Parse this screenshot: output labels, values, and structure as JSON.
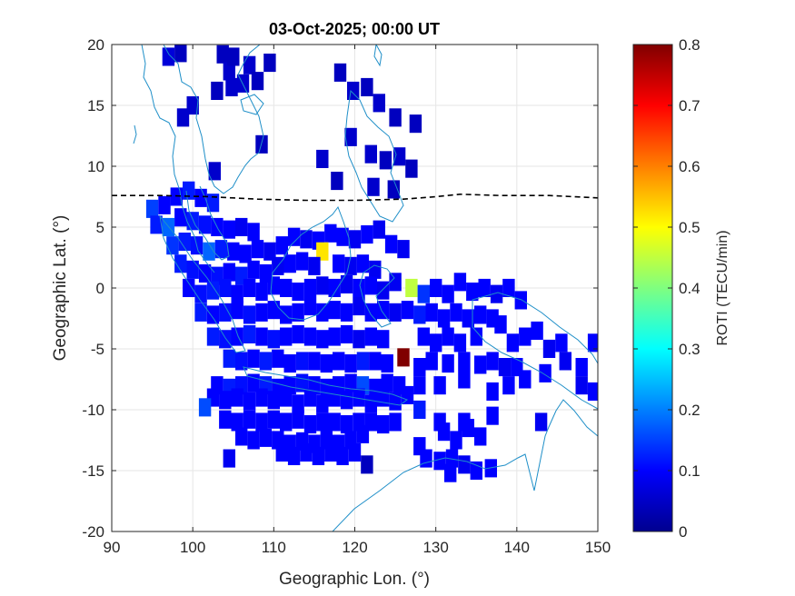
{
  "chart_data": {
    "type": "heatmap",
    "title": "03-Oct-2025; 00:00 UT",
    "xlabel": "Geographic Lon. (°)",
    "ylabel": "Geographic Lat. (°)",
    "xlim": [
      90,
      150
    ],
    "ylim": [
      -20,
      20
    ],
    "xticks": [
      "90",
      "100",
      "110",
      "120",
      "130",
      "140",
      "150"
    ],
    "yticks": [
      "20",
      "15",
      "10",
      "5",
      "0",
      "-5",
      "-10",
      "-15",
      "-20"
    ],
    "grid": true,
    "colorbar": {
      "label": "ROTI (TECU/min)",
      "range": [
        0,
        0.8
      ],
      "ticks": [
        "0.8",
        "0.7",
        "0.6",
        "0.5",
        "0.4",
        "0.3",
        "0.2",
        "0.1",
        "0"
      ],
      "colormap": "jet"
    },
    "terminator_line": {
      "style": "dashed",
      "color": "#000000",
      "points": [
        [
          90,
          7.6
        ],
        [
          96,
          7.6
        ],
        [
          102,
          7.5
        ],
        [
          108,
          7.3
        ],
        [
          114,
          7.2
        ],
        [
          120,
          7.2
        ],
        [
          126,
          7.3
        ],
        [
          130,
          7.5
        ],
        [
          133,
          7.7
        ],
        [
          138,
          7.6
        ],
        [
          144,
          7.6
        ],
        [
          150,
          7.4
        ]
      ]
    },
    "cell_size_deg": [
      1.5,
      1.5
    ],
    "roti_cells": [
      [
        97.0,
        19.0,
        0.07
      ],
      [
        98.5,
        19.3,
        0.05
      ],
      [
        103.7,
        19.2,
        0.05
      ],
      [
        104.5,
        17.8,
        0.06
      ],
      [
        105.0,
        19.0,
        0.05
      ],
      [
        107.0,
        18.3,
        0.06
      ],
      [
        108.0,
        17.0,
        0.05
      ],
      [
        109.5,
        18.5,
        0.05
      ],
      [
        103.0,
        16.2,
        0.05
      ],
      [
        104.8,
        16.5,
        0.06
      ],
      [
        106.2,
        16.8,
        0.06
      ],
      [
        98.8,
        14.0,
        0.06
      ],
      [
        100.0,
        15.0,
        0.06
      ],
      [
        108.5,
        11.8,
        0.05
      ],
      [
        102.7,
        9.6,
        0.06
      ],
      [
        118.2,
        17.7,
        0.05
      ],
      [
        119.8,
        16.2,
        0.06
      ],
      [
        121.5,
        16.5,
        0.05
      ],
      [
        123.0,
        15.2,
        0.06
      ],
      [
        125.0,
        14.0,
        0.05
      ],
      [
        127.5,
        13.5,
        0.05
      ],
      [
        119.5,
        12.4,
        0.06
      ],
      [
        122.0,
        11.0,
        0.06
      ],
      [
        123.8,
        10.5,
        0.05
      ],
      [
        125.5,
        10.8,
        0.06
      ],
      [
        127.0,
        9.8,
        0.05
      ],
      [
        116.0,
        10.6,
        0.06
      ],
      [
        117.8,
        8.8,
        0.05
      ],
      [
        122.3,
        8.3,
        0.06
      ],
      [
        124.8,
        8.1,
        0.05
      ],
      [
        95.0,
        6.5,
        0.15
      ],
      [
        96.5,
        6.8,
        0.1
      ],
      [
        98.0,
        7.5,
        0.1
      ],
      [
        99.5,
        8.0,
        0.12
      ],
      [
        101.0,
        7.4,
        0.1
      ],
      [
        102.5,
        7.0,
        0.12
      ],
      [
        95.5,
        5.2,
        0.12
      ],
      [
        97.0,
        5.0,
        0.18
      ],
      [
        98.5,
        5.8,
        0.1
      ],
      [
        100.0,
        5.5,
        0.12
      ],
      [
        101.5,
        5.2,
        0.11
      ],
      [
        103.0,
        5.0,
        0.1
      ],
      [
        104.5,
        4.8,
        0.1
      ],
      [
        106.0,
        5.0,
        0.09
      ],
      [
        107.5,
        4.6,
        0.1
      ],
      [
        97.5,
        3.5,
        0.14
      ],
      [
        99.0,
        3.8,
        0.12
      ],
      [
        100.5,
        3.5,
        0.11
      ],
      [
        102.0,
        3.0,
        0.18
      ],
      [
        103.5,
        3.2,
        0.12
      ],
      [
        105.0,
        3.0,
        0.1
      ],
      [
        106.5,
        2.8,
        0.1
      ],
      [
        108.0,
        3.2,
        0.1
      ],
      [
        109.5,
        3.0,
        0.09
      ],
      [
        111.0,
        3.5,
        0.1
      ],
      [
        112.5,
        4.2,
        0.1
      ],
      [
        114.0,
        4.0,
        0.09
      ],
      [
        115.5,
        3.9,
        0.1
      ],
      [
        117.0,
        4.5,
        0.1
      ],
      [
        118.5,
        4.2,
        0.1
      ],
      [
        120.0,
        4.0,
        0.09
      ],
      [
        121.5,
        4.4,
        0.1
      ],
      [
        123.0,
        4.8,
        0.09
      ],
      [
        124.5,
        3.6,
        0.1
      ],
      [
        126.0,
        3.2,
        0.09
      ],
      [
        116.0,
        3.0,
        0.52
      ],
      [
        98.5,
        2.0,
        0.12
      ],
      [
        100.0,
        1.5,
        0.11
      ],
      [
        101.5,
        1.2,
        0.1
      ],
      [
        103.0,
        1.0,
        0.11
      ],
      [
        104.5,
        1.3,
        0.1
      ],
      [
        106.0,
        1.0,
        0.12
      ],
      [
        107.5,
        1.5,
        0.1
      ],
      [
        109.0,
        1.2,
        0.1
      ],
      [
        110.5,
        1.8,
        0.09
      ],
      [
        112.0,
        2.0,
        0.1
      ],
      [
        113.5,
        2.2,
        0.1
      ],
      [
        115.0,
        1.8,
        0.09
      ],
      [
        118.0,
        2.0,
        0.1
      ],
      [
        119.5,
        1.8,
        0.09
      ],
      [
        121.0,
        2.0,
        0.1
      ],
      [
        122.5,
        1.5,
        0.09
      ],
      [
        99.5,
        0.0,
        0.1
      ],
      [
        101.0,
        -0.5,
        0.11
      ],
      [
        102.5,
        -0.2,
        0.12
      ],
      [
        104.0,
        0.0,
        0.11
      ],
      [
        105.5,
        -0.5,
        0.1
      ],
      [
        107.0,
        0.0,
        0.1
      ],
      [
        108.5,
        -0.3,
        0.1
      ],
      [
        110.0,
        0.2,
        0.1
      ],
      [
        111.5,
        0.0,
        0.1
      ],
      [
        113.0,
        -0.3,
        0.1
      ],
      [
        114.5,
        0.0,
        0.1
      ],
      [
        116.0,
        0.2,
        0.09
      ],
      [
        117.5,
        0.0,
        0.1
      ],
      [
        119.0,
        0.3,
        0.09
      ],
      [
        120.5,
        0.0,
        0.1
      ],
      [
        122.0,
        0.2,
        0.1
      ],
      [
        123.5,
        -0.2,
        0.09
      ],
      [
        125.0,
        0.5,
        0.09
      ],
      [
        127.0,
        0.0,
        0.45
      ],
      [
        128.5,
        -0.5,
        0.14
      ],
      [
        130.0,
        0.0,
        0.1
      ],
      [
        131.5,
        -0.5,
        0.1
      ],
      [
        133.0,
        0.5,
        0.1
      ],
      [
        134.5,
        -0.3,
        0.1
      ],
      [
        136.0,
        0.0,
        0.1
      ],
      [
        137.5,
        -0.5,
        0.09
      ],
      [
        139.0,
        0.0,
        0.1
      ],
      [
        140.5,
        -1.0,
        0.1
      ],
      [
        101.0,
        -2.0,
        0.12
      ],
      [
        102.5,
        -2.2,
        0.1
      ],
      [
        104.0,
        -2.0,
        0.11
      ],
      [
        105.5,
        -1.8,
        0.1
      ],
      [
        107.0,
        -2.2,
        0.11
      ],
      [
        108.5,
        -2.0,
        0.1
      ],
      [
        110.0,
        -1.8,
        0.1
      ],
      [
        111.5,
        -2.2,
        0.1
      ],
      [
        113.0,
        -2.0,
        0.1
      ],
      [
        114.5,
        -1.5,
        0.1
      ],
      [
        116.0,
        -2.0,
        0.1
      ],
      [
        117.5,
        -1.8,
        0.1
      ],
      [
        119.0,
        -2.0,
        0.1
      ],
      [
        120.5,
        -1.5,
        0.09
      ],
      [
        122.0,
        -2.0,
        0.1
      ],
      [
        123.5,
        -1.8,
        0.1
      ],
      [
        125.0,
        -2.0,
        0.09
      ],
      [
        126.5,
        -1.8,
        0.1
      ],
      [
        128.0,
        -2.2,
        0.12
      ],
      [
        129.5,
        -2.0,
        0.1
      ],
      [
        131.0,
        -2.5,
        0.1
      ],
      [
        132.5,
        -2.0,
        0.1
      ],
      [
        134.0,
        -2.5,
        0.1
      ],
      [
        135.5,
        -2.2,
        0.1
      ],
      [
        137.0,
        -2.5,
        0.1
      ],
      [
        102.5,
        -4.0,
        0.12
      ],
      [
        104.0,
        -4.2,
        0.11
      ],
      [
        105.5,
        -4.0,
        0.1
      ],
      [
        107.0,
        -3.8,
        0.12
      ],
      [
        108.5,
        -4.0,
        0.1
      ],
      [
        110.0,
        -4.2,
        0.11
      ],
      [
        111.5,
        -4.0,
        0.1
      ],
      [
        113.0,
        -3.8,
        0.1
      ],
      [
        114.5,
        -4.0,
        0.1
      ],
      [
        116.0,
        -4.2,
        0.1
      ],
      [
        117.5,
        -4.0,
        0.1
      ],
      [
        119.0,
        -3.8,
        0.1
      ],
      [
        120.5,
        -4.2,
        0.09
      ],
      [
        122.0,
        -4.0,
        0.1
      ],
      [
        123.5,
        -4.2,
        0.1
      ],
      [
        128.5,
        -4.0,
        0.1
      ],
      [
        130.0,
        -4.5,
        0.1
      ],
      [
        131.5,
        -4.0,
        0.1
      ],
      [
        133.0,
        -4.5,
        0.1
      ],
      [
        135.0,
        -4.0,
        0.1
      ],
      [
        138.0,
        -3.0,
        0.1
      ],
      [
        139.5,
        -4.5,
        0.1
      ],
      [
        141.0,
        -4.0,
        0.1
      ],
      [
        142.5,
        -3.5,
        0.1
      ],
      [
        144.0,
        -5.0,
        0.09
      ],
      [
        145.5,
        -4.5,
        0.1
      ],
      [
        149.5,
        -4.5,
        0.1
      ],
      [
        104.5,
        -5.8,
        0.12
      ],
      [
        106.0,
        -6.0,
        0.11
      ],
      [
        107.5,
        -5.8,
        0.1
      ],
      [
        109.0,
        -6.0,
        0.12
      ],
      [
        110.5,
        -5.8,
        0.1
      ],
      [
        112.0,
        -6.2,
        0.1
      ],
      [
        113.5,
        -6.0,
        0.11
      ],
      [
        115.0,
        -6.0,
        0.1
      ],
      [
        116.5,
        -6.2,
        0.1
      ],
      [
        118.0,
        -6.0,
        0.1
      ],
      [
        119.5,
        -6.2,
        0.1
      ],
      [
        121.0,
        -6.0,
        0.12
      ],
      [
        122.5,
        -6.0,
        0.1
      ],
      [
        124.0,
        -6.2,
        0.1
      ],
      [
        126.0,
        -5.7,
        0.8
      ],
      [
        128.0,
        -6.5,
        0.1
      ],
      [
        129.5,
        -6.0,
        0.1
      ],
      [
        131.5,
        -6.2,
        0.1
      ],
      [
        133.5,
        -6.0,
        0.1
      ],
      [
        135.5,
        -6.3,
        0.1
      ],
      [
        137.0,
        -6.0,
        0.1
      ],
      [
        138.5,
        -6.5,
        0.09
      ],
      [
        140.0,
        -6.5,
        0.1
      ],
      [
        143.5,
        -7.0,
        0.1
      ],
      [
        146.0,
        -6.0,
        0.09
      ],
      [
        148.0,
        -6.5,
        0.1
      ],
      [
        103.0,
        -8.0,
        0.1
      ],
      [
        104.5,
        -8.2,
        0.12
      ],
      [
        106.0,
        -8.0,
        0.11
      ],
      [
        107.5,
        -7.8,
        0.1
      ],
      [
        109.0,
        -8.0,
        0.12
      ],
      [
        110.5,
        -8.2,
        0.1
      ],
      [
        112.0,
        -8.0,
        0.1
      ],
      [
        113.5,
        -7.8,
        0.11
      ],
      [
        115.0,
        -8.0,
        0.1
      ],
      [
        116.5,
        -8.2,
        0.1
      ],
      [
        118.0,
        -8.0,
        0.1
      ],
      [
        119.5,
        -7.8,
        0.1
      ],
      [
        121.0,
        -8.0,
        0.16
      ],
      [
        122.5,
        -8.2,
        0.1
      ],
      [
        124.0,
        -7.8,
        0.1
      ],
      [
        125.5,
        -8.0,
        0.1
      ],
      [
        128.0,
        -8.0,
        0.1
      ],
      [
        130.5,
        -8.0,
        0.1
      ],
      [
        133.5,
        -7.5,
        0.1
      ],
      [
        137.0,
        -8.5,
        0.1
      ],
      [
        139.0,
        -8.0,
        0.1
      ],
      [
        141.0,
        -7.5,
        0.1
      ],
      [
        148.0,
        -8.0,
        0.09
      ],
      [
        102.5,
        -9.0,
        0.1
      ],
      [
        104.0,
        -9.2,
        0.1
      ],
      [
        105.5,
        -9.0,
        0.1
      ],
      [
        107.0,
        -9.3,
        0.1
      ],
      [
        108.5,
        -9.0,
        0.1
      ],
      [
        110.0,
        -9.2,
        0.1
      ],
      [
        111.5,
        -9.0,
        0.1
      ],
      [
        113.0,
        -9.5,
        0.1
      ],
      [
        114.5,
        -9.0,
        0.1
      ],
      [
        116.0,
        -9.5,
        0.1
      ],
      [
        117.5,
        -9.0,
        0.1
      ],
      [
        119.0,
        -9.2,
        0.1
      ],
      [
        120.5,
        -9.0,
        0.1
      ],
      [
        122.0,
        -9.5,
        0.1
      ],
      [
        123.5,
        -9.0,
        0.1
      ],
      [
        125.0,
        -9.3,
        0.1
      ],
      [
        126.5,
        -8.8,
        0.1
      ],
      [
        101.5,
        -9.8,
        0.16
      ],
      [
        149.5,
        -8.5,
        0.1
      ],
      [
        104.0,
        -10.8,
        0.1
      ],
      [
        105.5,
        -11.0,
        0.1
      ],
      [
        107.0,
        -10.8,
        0.1
      ],
      [
        108.5,
        -11.0,
        0.1
      ],
      [
        110.0,
        -10.8,
        0.1
      ],
      [
        111.5,
        -11.0,
        0.1
      ],
      [
        113.0,
        -10.8,
        0.1
      ],
      [
        114.5,
        -11.2,
        0.1
      ],
      [
        116.0,
        -11.0,
        0.1
      ],
      [
        117.5,
        -11.0,
        0.1
      ],
      [
        119.0,
        -11.2,
        0.1
      ],
      [
        120.5,
        -11.0,
        0.1
      ],
      [
        122.0,
        -11.0,
        0.1
      ],
      [
        123.5,
        -11.2,
        0.1
      ],
      [
        125.0,
        -11.0,
        0.1
      ],
      [
        128.0,
        -10.0,
        0.12
      ],
      [
        130.5,
        -11.0,
        0.1
      ],
      [
        133.5,
        -11.0,
        0.1
      ],
      [
        137.0,
        -10.5,
        0.1
      ],
      [
        143.0,
        -11.0,
        0.09
      ],
      [
        106.0,
        -12.2,
        0.1
      ],
      [
        107.5,
        -12.5,
        0.1
      ],
      [
        109.0,
        -12.3,
        0.1
      ],
      [
        110.5,
        -12.5,
        0.1
      ],
      [
        112.0,
        -12.8,
        0.1
      ],
      [
        113.5,
        -12.6,
        0.1
      ],
      [
        115.0,
        -12.8,
        0.1
      ],
      [
        116.5,
        -12.5,
        0.1
      ],
      [
        118.0,
        -12.8,
        0.1
      ],
      [
        119.5,
        -12.5,
        0.1
      ],
      [
        121.0,
        -12.0,
        0.1
      ],
      [
        131.0,
        -11.8,
        0.1
      ],
      [
        132.5,
        -12.5,
        0.1
      ],
      [
        134.0,
        -11.5,
        0.1
      ],
      [
        135.5,
        -12.2,
        0.1
      ],
      [
        111.0,
        -13.5,
        0.1
      ],
      [
        112.5,
        -13.8,
        0.1
      ],
      [
        114.0,
        -13.5,
        0.1
      ],
      [
        115.5,
        -13.8,
        0.1
      ],
      [
        117.0,
        -13.5,
        0.1
      ],
      [
        118.5,
        -13.8,
        0.1
      ],
      [
        120.0,
        -13.5,
        0.1
      ],
      [
        128.0,
        -13.0,
        0.1
      ],
      [
        132.0,
        -14.0,
        0.1
      ],
      [
        104.5,
        -14.0,
        0.09
      ],
      [
        128.8,
        -14.0,
        0.1
      ],
      [
        130.5,
        -14.2,
        0.1
      ],
      [
        133.5,
        -14.5,
        0.09
      ],
      [
        135.0,
        -15.0,
        0.1
      ],
      [
        136.8,
        -14.8,
        0.1
      ],
      [
        121.5,
        -14.5,
        0.05
      ],
      [
        131.8,
        -15.2,
        0.1
      ]
    ]
  }
}
